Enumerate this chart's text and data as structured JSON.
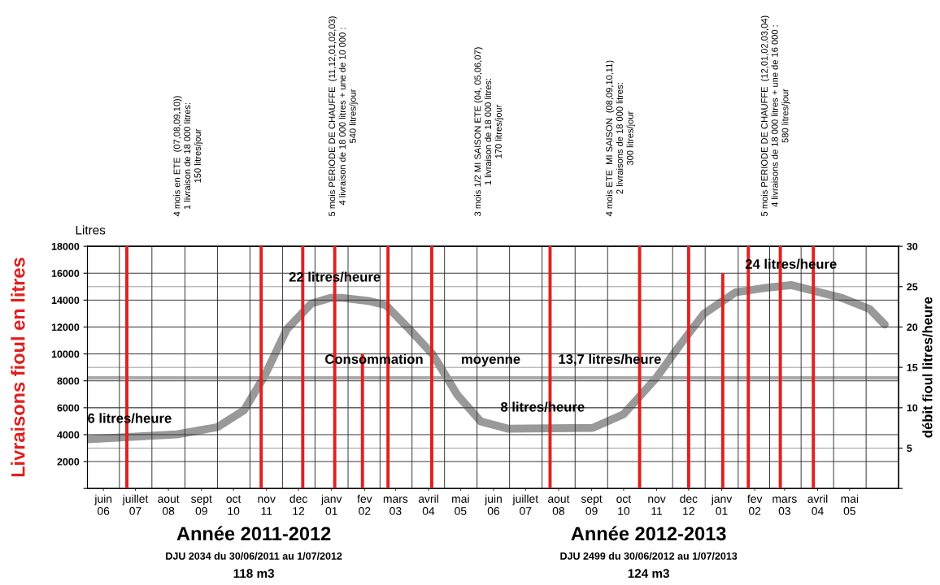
{
  "chart_data": {
    "type": "bar",
    "ylabel": "Livraisons fioul en litres",
    "y2label": "débit fioul litres/heure",
    "xlim": [
      "2011-05-17",
      "2013-06-16"
    ],
    "xticks": [
      {
        "value": "2011-06",
        "label": "juin\n06"
      },
      {
        "value": "2011-07",
        "label": "juillet\n07"
      },
      {
        "value": "2011-08",
        "label": "aout\n08"
      },
      {
        "value": "2011-09",
        "label": "sept\n09"
      },
      {
        "value": "2011-10",
        "label": "oct\n10"
      },
      {
        "value": "2011-11",
        "label": "nov\n11"
      },
      {
        "value": "2011-12",
        "label": "dec\n12"
      },
      {
        "value": "2012-01",
        "label": "janv\n01"
      },
      {
        "value": "2012-02",
        "label": "fev\n02"
      },
      {
        "value": "2012-03",
        "label": "mars\n03"
      },
      {
        "value": "2012-04",
        "label": "avril\n04"
      },
      {
        "value": "2012-05",
        "label": "mai\n05"
      },
      {
        "value": "2012-06",
        "label": "juin\n06"
      },
      {
        "value": "2012-07",
        "label": "juillet\n07"
      },
      {
        "value": "2012-08",
        "label": "aout\n08"
      },
      {
        "value": "2012-09",
        "label": "sept\n09"
      },
      {
        "value": "2012-10",
        "label": "oct\n10"
      },
      {
        "value": "2012-11",
        "label": "nov\n11"
      },
      {
        "value": "2012-12",
        "label": "dec\n12"
      },
      {
        "value": "2013-01",
        "label": "janv\n01"
      },
      {
        "value": "2013-02",
        "label": "fev\n02"
      },
      {
        "value": "2013-03",
        "label": "mars\n03"
      },
      {
        "value": "2013-04",
        "label": "avril\n04"
      },
      {
        "value": "2013-05",
        "label": "mai\n05"
      }
    ],
    "ylim": [
      0,
      18000
    ],
    "yticks": [
      {
        "value": 0,
        "label": null
      },
      2000,
      4000,
      6000,
      8000,
      10000,
      12000,
      14000,
      16000,
      18000
    ],
    "y2lim": [
      0,
      30
    ],
    "y2ticks": [
      {
        "value": 0,
        "label": null
      },
      5,
      10,
      15,
      20,
      25,
      30
    ],
    "grid": true,
    "series": [
      {
        "color": "#e02020",
        "x": [
          "2011-06-23",
          "2011-10-27",
          "2011-12-05",
          "2012-01-04",
          "2012-01-30",
          "2012-02-23",
          "2012-04-04",
          "2012-07-24",
          "2012-10-16",
          "2012-12-01",
          "2013-01-02",
          "2013-01-26",
          "2013-02-25",
          "2013-03-28"
        ],
        "values": [
          18000,
          18000,
          18000,
          18000,
          10000,
          18000,
          18000,
          18000,
          18000,
          18000,
          16000,
          18000,
          18000,
          18000
        ]
      },
      {
        "type": "line",
        "axis": "y2",
        "color": "#999999",
        "x": [
          "2011-05-17",
          "2011-08-09",
          "2011-09-16",
          "2011-10-11",
          "2011-10-30",
          "2011-11-20",
          "2011-12-13",
          "2011-12-31",
          "2012-01-12",
          "2012-02-06",
          "2012-02-21",
          "2012-03-12",
          "2012-04-05",
          "2012-04-28",
          "2012-05-20",
          "2012-06-15",
          "2012-09-02",
          "2012-10-01",
          "2012-10-31",
          "2012-11-23",
          "2012-12-15",
          "2013-01-14",
          "2013-02-14",
          "2013-03-07",
          "2013-03-28",
          "2013-04-24",
          "2013-05-20",
          "2013-06-03"
        ],
        "values": [
          6.1,
          6.7,
          7.6,
          9.7,
          13.9,
          19.7,
          22.9,
          23.6,
          23.6,
          23.2,
          22.7,
          20.0,
          16.6,
          11.6,
          8.3,
          7.4,
          7.5,
          9.2,
          13.6,
          17.8,
          21.6,
          24.3,
          24.9,
          25.2,
          24.5,
          23.6,
          22.2,
          20.3
        ]
      }
    ],
    "ref_lines": [
      {
        "axis": "y2",
        "value": 13.7,
        "label": "Consommation          moyenne          13,7 litres/heure",
        "color": "#aaaaaa"
      }
    ],
    "annotations": [
      {
        "text": "6 litres/heure",
        "x": "2011-05-17",
        "y": 3660
      },
      {
        "text": "22 litres/heure",
        "x": "2012-01-04",
        "y": 14160
      },
      {
        "text": "8 litres/heure",
        "x": "2012-07-17",
        "y": 4500
      },
      {
        "text": "24 litres/heure",
        "x": "2013-03-07",
        "y": 15120
      },
      "Litres",
      "4 mois en ETE  (07,08,09,10))\n1 livraison de 18 000 litres:\n150 litres/jour",
      "5 mois PERIODE DE CHAUFFE  (11,12,01,02,03)\n4 livraison de 18 000 litres + une de 10 000 :\n540 litres/jour",
      "3 mois 1/2 MI SAISON ETE (04, 05,06,07)\n1 livraison de 18 000 litres:\n170 litres/jour",
      "4 mois ETE  MI SAISON  (08,09,10,11)\n2 livraisons de 18 000 litres:\n300 litres/jour",
      "5 mois PERIODE DE CHAUFFE  (12,01,02,03,04)\n4 livraisons de 18 000 litres + une de 16 000 :\n580 litres/jour",
      "Année 2011-2012",
      "DJU 2034 du 30/06/2011 au 1/07/2012",
      "118 m3",
      "Année 2012-2013",
      "DJU 2499 du 30/06/2012 au 1/07/2013",
      "124 m3"
    ]
  }
}
